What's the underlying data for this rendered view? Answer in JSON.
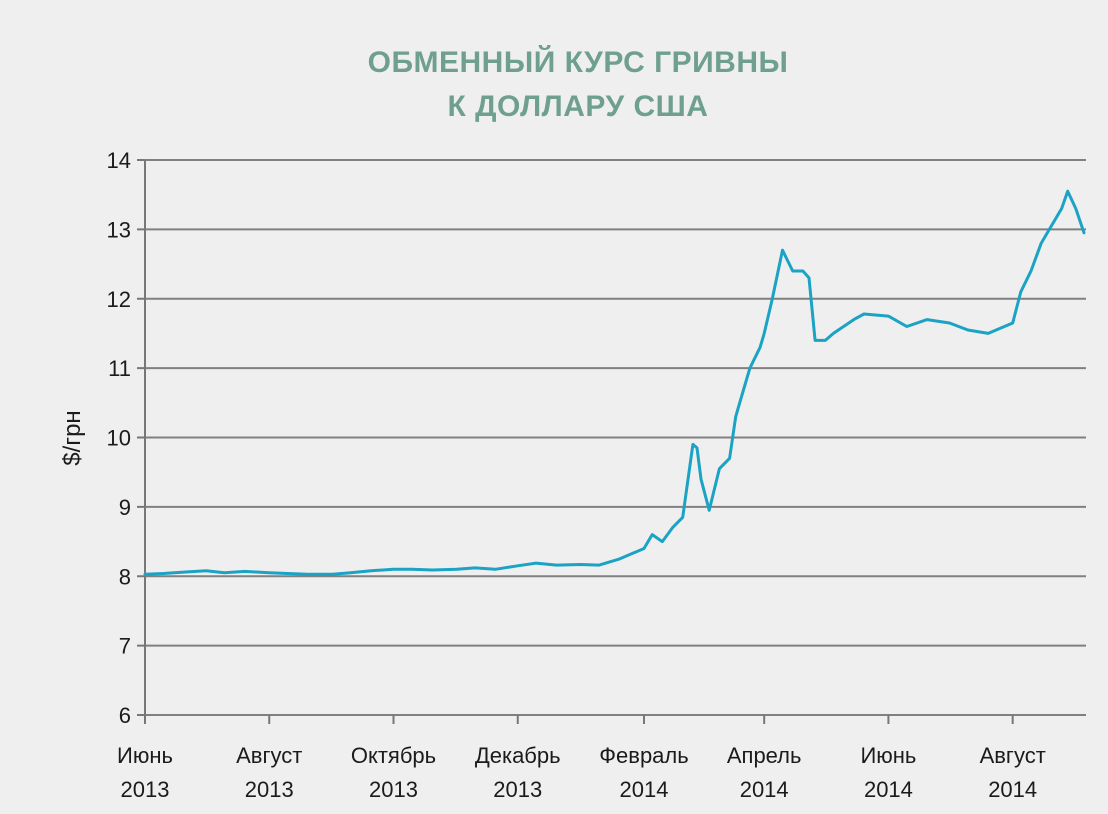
{
  "chart_data": {
    "type": "line",
    "title_lines": [
      "ОБМЕННЫЙ КУРС ГРИВНЫ",
      "К ДОЛЛАРУ США"
    ],
    "title": "ОБМЕННЫЙ КУРС ГРИВНЫ К ДОЛЛАРУ США",
    "xlabel": "",
    "ylabel": "$/грн",
    "ylim": [
      6,
      14
    ],
    "yticks": [
      6,
      7,
      8,
      9,
      10,
      11,
      12,
      13,
      14
    ],
    "grid": true,
    "x_tick_labels": [
      {
        "month": "Июнь",
        "year": "2013"
      },
      {
        "month": "Август",
        "year": "2013"
      },
      {
        "month": "Октябрь",
        "year": "2013"
      },
      {
        "month": "Декабрь",
        "year": "2013"
      },
      {
        "month": "Февраль",
        "year": "2014"
      },
      {
        "month": "Апрель",
        "year": "2014"
      },
      {
        "month": "Июнь",
        "year": "2014"
      },
      {
        "month": "Август",
        "year": "2014"
      }
    ],
    "series": [
      {
        "color": "#1aa3c4",
        "x": [
          "2013-06-01",
          "2013-06-10",
          "2013-06-20",
          "2013-07-01",
          "2013-07-10",
          "2013-07-20",
          "2013-08-01",
          "2013-08-10",
          "2013-08-20",
          "2013-09-01",
          "2013-09-10",
          "2013-09-20",
          "2013-10-01",
          "2013-10-10",
          "2013-10-20",
          "2013-11-01",
          "2013-11-10",
          "2013-11-20",
          "2013-12-01",
          "2013-12-10",
          "2013-12-20",
          "2014-01-01",
          "2014-01-10",
          "2014-01-20",
          "2014-02-01",
          "2014-02-05",
          "2014-02-10",
          "2014-02-15",
          "2014-02-20",
          "2014-02-25",
          "2014-02-27",
          "2014-03-01",
          "2014-03-05",
          "2014-03-10",
          "2014-03-15",
          "2014-03-18",
          "2014-03-20",
          "2014-03-25",
          "2014-03-30",
          "2014-04-01",
          "2014-04-05",
          "2014-04-10",
          "2014-04-15",
          "2014-04-20",
          "2014-04-23",
          "2014-04-26",
          "2014-05-01",
          "2014-05-05",
          "2014-05-10",
          "2014-05-15",
          "2014-05-20",
          "2014-06-01",
          "2014-06-10",
          "2014-06-20",
          "2014-07-01",
          "2014-07-10",
          "2014-07-20",
          "2014-08-01",
          "2014-08-05",
          "2014-08-10",
          "2014-08-15",
          "2014-08-20",
          "2014-08-25",
          "2014-08-28",
          "2014-09-01",
          "2014-09-05"
        ],
        "values": [
          8.03,
          8.04,
          8.06,
          8.08,
          8.05,
          8.07,
          8.05,
          8.04,
          8.03,
          8.03,
          8.05,
          8.08,
          8.1,
          8.1,
          8.09,
          8.1,
          8.12,
          8.1,
          8.15,
          8.19,
          8.16,
          8.17,
          8.16,
          8.25,
          8.4,
          8.6,
          8.5,
          8.7,
          8.85,
          9.9,
          9.85,
          9.4,
          8.95,
          9.55,
          9.7,
          10.3,
          10.5,
          11.0,
          11.3,
          11.5,
          12.0,
          12.7,
          12.4,
          12.4,
          12.3,
          11.4,
          11.4,
          11.5,
          11.6,
          11.7,
          11.78,
          11.75,
          11.6,
          11.7,
          11.65,
          11.55,
          11.5,
          11.65,
          12.1,
          12.4,
          12.8,
          13.05,
          13.3,
          13.55,
          13.3,
          12.95
        ]
      }
    ]
  }
}
